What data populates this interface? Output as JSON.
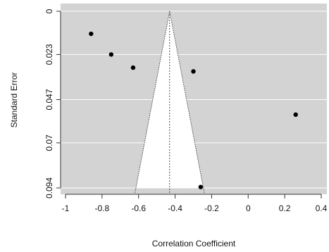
{
  "chart_data": {
    "type": "scatter",
    "subtype": "funnel",
    "title": "",
    "xlabel": "Correlation Coefficient",
    "ylabel": "Standard Error",
    "xlim": [
      -1.0,
      0.4
    ],
    "ylim": [
      0.094,
      0
    ],
    "y_axis_reversed": true,
    "x_ticks": [
      -1,
      -0.8,
      -0.6,
      -0.4,
      -0.2,
      0,
      0.2,
      0.4
    ],
    "x_tick_labels": [
      "-1",
      "-0.8",
      "-0.6",
      "-0.4",
      "-0.2",
      "0",
      "0.2",
      "0.4"
    ],
    "y_ticks": [
      0,
      0.023,
      0.047,
      0.07,
      0.094
    ],
    "y_tick_labels": [
      "0",
      "0.023",
      "0.047",
      "0.07",
      "0.094"
    ],
    "grid": "horizontal",
    "background_color": "#d3d3d3",
    "grid_color": "#ffffff",
    "funnel": {
      "center": -0.43,
      "apex_se": 0,
      "base_se": 0.094,
      "left_at_base": -0.614,
      "right_at_base": -0.246,
      "fill": "#ffffff"
    },
    "points": [
      {
        "x": -0.86,
        "y": 0.012
      },
      {
        "x": -0.75,
        "y": 0.023
      },
      {
        "x": -0.63,
        "y": 0.03
      },
      {
        "x": -0.3,
        "y": 0.032
      },
      {
        "x": 0.26,
        "y": 0.055
      },
      {
        "x": -0.26,
        "y": 0.0935
      }
    ]
  }
}
